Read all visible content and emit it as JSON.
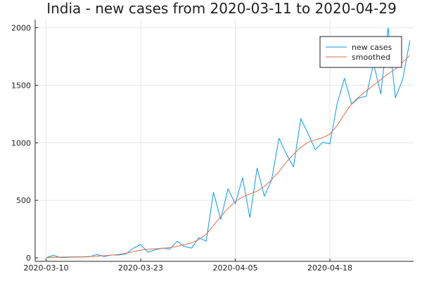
{
  "chart_data": {
    "type": "line",
    "title": "India - new cases from 2020-03-11 to 2020-04-29",
    "xlabel": "",
    "ylabel": "",
    "x_start": "2020-03-10",
    "x_ticks": [
      "2020-03-10",
      "2020-03-23",
      "2020-04-05",
      "2020-04-18"
    ],
    "y_ticks": [
      0,
      500,
      1000,
      1500,
      2000
    ],
    "ylim": [
      -30,
      2070
    ],
    "xlim_days": [
      -1.5,
      50.5
    ],
    "grid": true,
    "legend_position": "top-right",
    "series": [
      {
        "name": "new cases",
        "color": "#009AFA",
        "values": [
          2,
          22,
          3,
          5,
          8,
          8,
          10,
          30,
          12,
          25,
          25,
          35,
          85,
          115,
          50,
          70,
          85,
          75,
          145,
          100,
          85,
          175,
          145,
          570,
          335,
          600,
          470,
          695,
          350,
          780,
          535,
          680,
          1040,
          905,
          790,
          1210,
          1080,
          940,
          1005,
          990,
          1340,
          1560,
          1335,
          1390,
          1405,
          1690,
          1425,
          2000,
          1390,
          1550,
          1890
        ]
      },
      {
        "name": "smoothed",
        "color": "#E26F46",
        "values": [
          2,
          5,
          7,
          8,
          9,
          10,
          12,
          15,
          19,
          24,
          30,
          40,
          55,
          68,
          75,
          79,
          83,
          90,
          100,
          115,
          130,
          160,
          205,
          280,
          360,
          430,
          490,
          530,
          555,
          580,
          620,
          680,
          750,
          830,
          900,
          960,
          1005,
          1025,
          1045,
          1075,
          1150,
          1250,
          1340,
          1400,
          1450,
          1500,
          1550,
          1600,
          1640,
          1700,
          1760
        ]
      }
    ]
  }
}
